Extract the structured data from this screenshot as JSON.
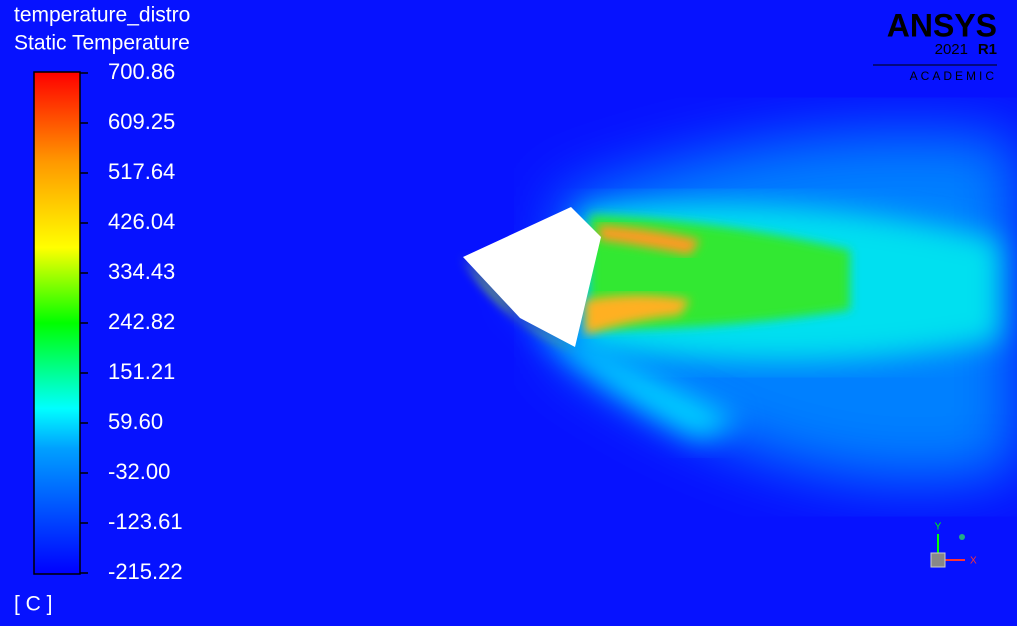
{
  "header": {
    "title": "temperature_distro",
    "variable": "Static Temperature"
  },
  "legend": {
    "ticks": [
      "700.86",
      "609.25",
      "517.64",
      "426.04",
      "334.43",
      "242.82",
      "151.21",
      "59.60",
      "-32.00",
      "-123.61",
      "-215.22"
    ],
    "unit": "[ C ]"
  },
  "logo": {
    "brand": "ANSYS",
    "version": "2021",
    "release": "R1",
    "edition": "ACADEMIC"
  },
  "triad": {
    "y": "Y",
    "x": "X"
  }
}
